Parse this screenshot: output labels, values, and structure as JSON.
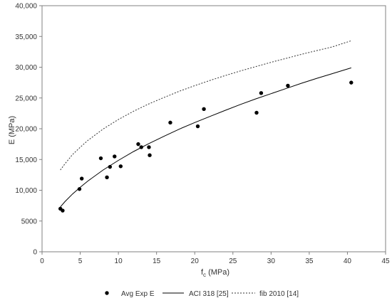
{
  "chart_data": {
    "type": "scatter",
    "xlabel_main": "f",
    "xlabel_sub": "c",
    "xlabel_unit": " (MPa)",
    "ylabel": "E (MPa)",
    "xlim": [
      0,
      45
    ],
    "ylim": [
      0,
      40000
    ],
    "xticks": [
      0,
      5,
      10,
      15,
      20,
      25,
      30,
      35,
      40,
      45
    ],
    "yticks": [
      0,
      5000,
      10000,
      15000,
      20000,
      25000,
      30000,
      35000,
      40000
    ],
    "ytick_labels": [
      "0",
      "5000",
      "10,000",
      "15,000",
      "20,000",
      "25,000",
      "30,000",
      "35,000",
      "40,000"
    ],
    "grid": false,
    "legend_position": "bottom",
    "series": [
      {
        "name": "Avg Exp E",
        "style": "markers",
        "color": "#000000",
        "points": [
          [
            2.4,
            7000
          ],
          [
            2.7,
            6700
          ],
          [
            4.9,
            10200
          ],
          [
            5.2,
            11900
          ],
          [
            7.7,
            15200
          ],
          [
            8.5,
            12100
          ],
          [
            8.9,
            13800
          ],
          [
            9.5,
            15500
          ],
          [
            10.3,
            13900
          ],
          [
            12.6,
            17500
          ],
          [
            13.0,
            17000
          ],
          [
            14.0,
            17000
          ],
          [
            14.1,
            15700
          ],
          [
            16.8,
            21000
          ],
          [
            20.4,
            20400
          ],
          [
            21.2,
            23200
          ],
          [
            28.1,
            22600
          ],
          [
            28.7,
            25800
          ],
          [
            32.2,
            27000
          ],
          [
            40.5,
            27500
          ]
        ]
      },
      {
        "name": "ACI 318 [25]",
        "style": "solid",
        "color": "#000000",
        "points": [
          [
            2.4,
            7300
          ],
          [
            3,
            8150
          ],
          [
            4,
            9400
          ],
          [
            5,
            10500
          ],
          [
            6,
            11500
          ],
          [
            8,
            13300
          ],
          [
            10,
            14850
          ],
          [
            12,
            16300
          ],
          [
            14,
            17600
          ],
          [
            16,
            18800
          ],
          [
            18,
            19950
          ],
          [
            20,
            21000
          ],
          [
            22,
            22000
          ],
          [
            24,
            23000
          ],
          [
            26,
            23950
          ],
          [
            28,
            24850
          ],
          [
            30,
            25700
          ],
          [
            32,
            26550
          ],
          [
            34,
            27400
          ],
          [
            36,
            28200
          ],
          [
            38,
            28950
          ],
          [
            40.5,
            29900
          ]
        ]
      },
      {
        "name": "fib 2010 [14]",
        "style": "dashed",
        "color": "#333333",
        "points": [
          [
            2.4,
            13300
          ],
          [
            3,
            14300
          ],
          [
            4,
            15800
          ],
          [
            5,
            17000
          ],
          [
            6,
            18100
          ],
          [
            8,
            19950
          ],
          [
            10,
            21500
          ],
          [
            12,
            22850
          ],
          [
            14,
            24050
          ],
          [
            16,
            25100
          ],
          [
            18,
            26100
          ],
          [
            20,
            27000
          ],
          [
            22,
            27850
          ],
          [
            24,
            28650
          ],
          [
            26,
            29400
          ],
          [
            28,
            30100
          ],
          [
            30,
            30800
          ],
          [
            32,
            31450
          ],
          [
            34,
            32100
          ],
          [
            36,
            32700
          ],
          [
            38,
            33300
          ],
          [
            40.5,
            34300
          ]
        ]
      }
    ]
  }
}
